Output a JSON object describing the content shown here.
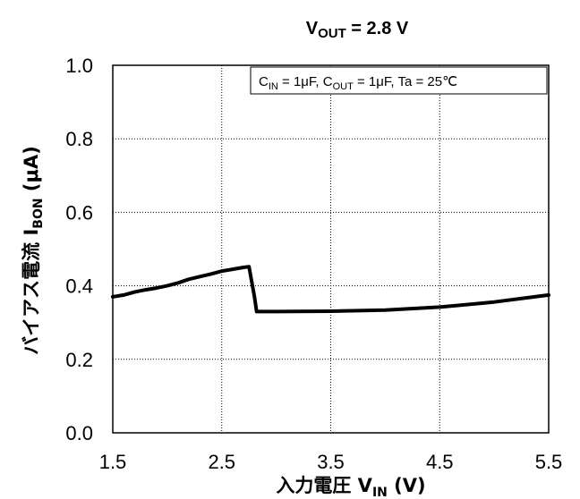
{
  "chart_data": {
    "type": "line",
    "title": {
      "main": "V",
      "sub": "OUT",
      "rest": " = 2.8 V"
    },
    "annotation": {
      "parts": [
        {
          "t": "C",
          "sub": false
        },
        {
          "t": "IN",
          "sub": true
        },
        {
          "t": " = 1μF, C",
          "sub": false
        },
        {
          "t": "OUT",
          "sub": true
        },
        {
          "t": " = 1μF, Ta = 25℃",
          "sub": false
        }
      ]
    },
    "xlabel": {
      "main": "入力電圧  V",
      "sub": "IN",
      "rest": " (V)"
    },
    "ylabel": {
      "main": "バイアス電流  I",
      "sub": "BON",
      "rest": " (μA)"
    },
    "xlim": [
      1.5,
      5.5
    ],
    "ylim": [
      0.0,
      1.0
    ],
    "xticks": [
      1.5,
      2.5,
      3.5,
      4.5,
      5.5
    ],
    "xtick_labels": [
      "1.5",
      "2.5",
      "3.5",
      "4.5",
      "5.5"
    ],
    "yticks": [
      0.0,
      0.2,
      0.4,
      0.6,
      0.8,
      1.0
    ],
    "ytick_labels": [
      "0.0",
      "0.2",
      "0.4",
      "0.6",
      "0.8",
      "1.0"
    ],
    "grid": true,
    "series": [
      {
        "x": [
          1.5,
          1.6,
          1.7,
          1.8,
          1.9,
          2.0,
          2.1,
          2.2,
          2.3,
          2.4,
          2.5,
          2.6,
          2.7,
          2.75,
          2.8,
          2.82,
          3.0,
          3.5,
          4.0,
          4.5,
          5.0,
          5.5
        ],
        "values": [
          0.37,
          0.375,
          0.383,
          0.389,
          0.394,
          0.4,
          0.408,
          0.418,
          0.425,
          0.432,
          0.44,
          0.445,
          0.45,
          0.452,
          0.37,
          0.33,
          0.33,
          0.331,
          0.334,
          0.342,
          0.356,
          0.375
        ]
      }
    ]
  }
}
